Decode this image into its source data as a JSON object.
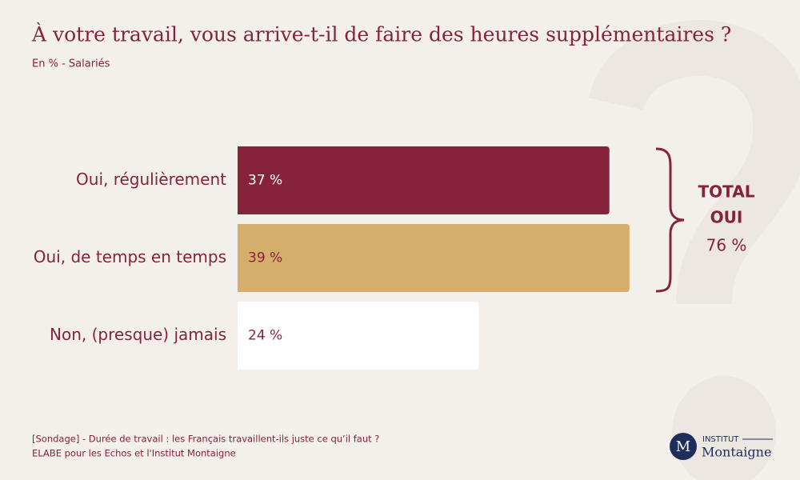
{
  "chart_data": {
    "type": "hbar",
    "title": "À votre travail, vous arrive-t-il de faire des heures supplémentaires ?",
    "subtitle": "En % - Salariés",
    "categories": [
      "Oui, régulièrement",
      "Oui, de temps en temps",
      "Non, (presque) jamais"
    ],
    "values": [
      37,
      39,
      24
    ],
    "value_labels": [
      "37 %",
      "39 %",
      "24 %"
    ],
    "colors": [
      "#862239",
      "#d4ae6a",
      "#ffffff"
    ],
    "value_label_colors": [
      "#ffffff",
      "#862239",
      "#862239"
    ],
    "annotation": {
      "lines": [
        "TOTAL",
        "OUI"
      ],
      "value": "76 %"
    },
    "source": [
      "[Sondage] - Durée de travail : les Français travaillent-ils juste ce qu’il faut ?",
      "ELABE pour les Echos et l'Institut Montaigne"
    ],
    "logo": {
      "mark": "M",
      "top": "INSTITUT",
      "name": "Montaigne"
    }
  }
}
